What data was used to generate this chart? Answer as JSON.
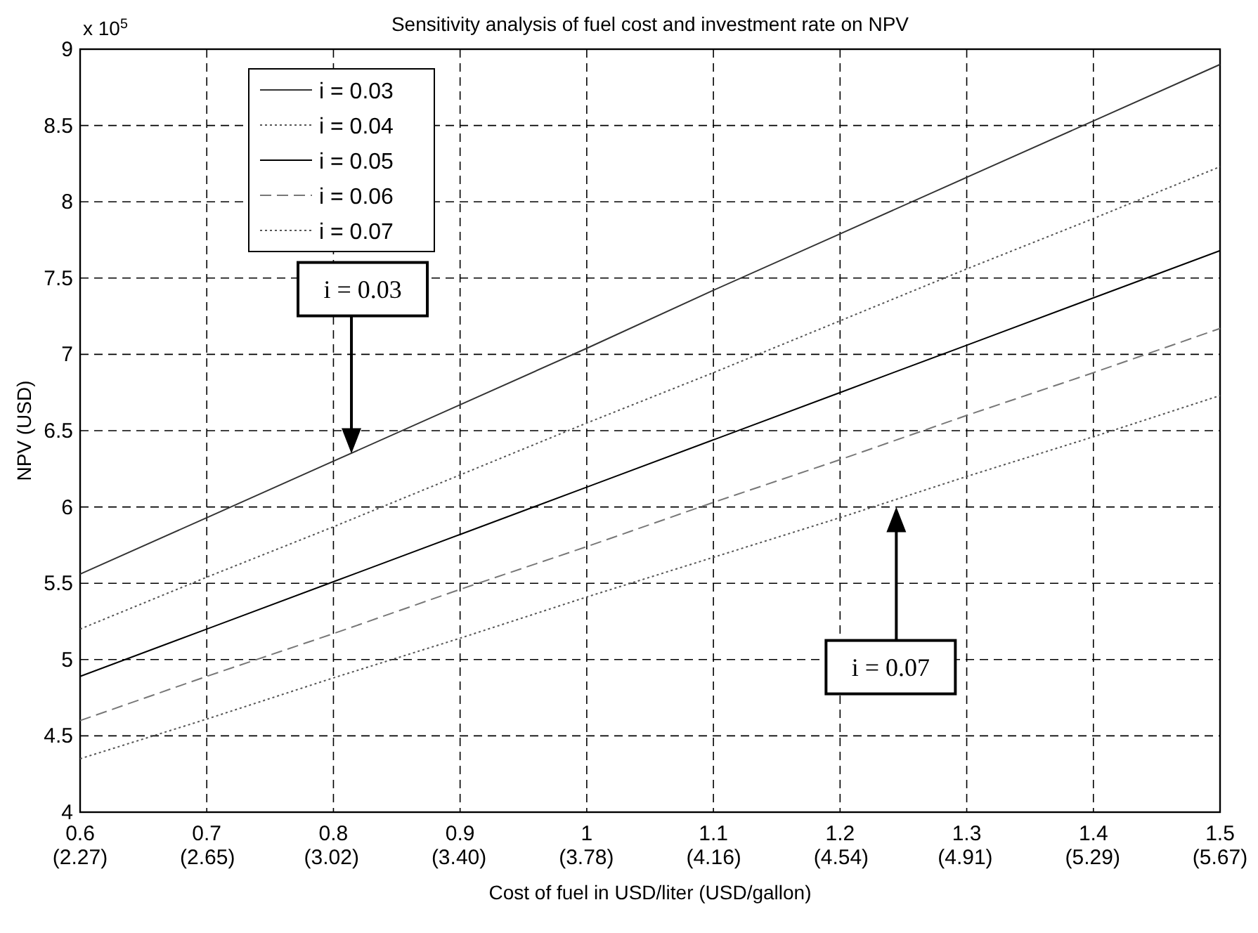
{
  "chart_data": {
    "type": "line",
    "title": "Sensitivity analysis of fuel cost and investment rate on NPV",
    "xlabel": "Cost of fuel in USD/liter (USD/gallon)",
    "ylabel": "NPV (USD)",
    "x": [
      0.6,
      0.7,
      0.8,
      0.9,
      1.0,
      1.1,
      1.2,
      1.3,
      1.4,
      1.5
    ],
    "series": [
      {
        "name": "i = 0.03",
        "color": "#333333",
        "line_style": "solid",
        "values": [
          5.56,
          5.93,
          6.3,
          6.67,
          7.04,
          7.42,
          7.79,
          8.16,
          8.53,
          8.9
        ]
      },
      {
        "name": "i = 0.04",
        "color": "#555555",
        "line_style": "dotted",
        "values": [
          5.2,
          5.54,
          5.87,
          6.21,
          6.55,
          6.88,
          7.22,
          7.56,
          7.89,
          8.23
        ]
      },
      {
        "name": "i = 0.05",
        "color": "#000000",
        "line_style": "solid",
        "values": [
          4.89,
          5.2,
          5.51,
          5.82,
          6.13,
          6.44,
          6.75,
          7.06,
          7.37,
          7.68
        ]
      },
      {
        "name": "i = 0.06",
        "color": "#777777",
        "line_style": "dashed",
        "values": [
          4.6,
          4.89,
          5.17,
          5.46,
          5.74,
          6.03,
          6.31,
          6.6,
          6.88,
          7.17
        ]
      },
      {
        "name": "i = 0.07",
        "color": "#555555",
        "line_style": "dotted",
        "values": [
          4.35,
          4.61,
          4.88,
          5.14,
          5.41,
          5.67,
          5.93,
          6.2,
          6.46,
          6.73
        ]
      }
    ],
    "xlim": [
      0.6,
      1.5
    ],
    "ylim": [
      4,
      9
    ],
    "xticks": [
      0.6,
      0.7,
      0.8,
      0.9,
      1,
      1.1,
      1.2,
      1.3,
      1.4,
      1.5
    ],
    "x2lim": [
      2.27,
      5.67
    ],
    "x2ticks": [
      {
        "value": 2.27,
        "label": "(2.27)"
      },
      {
        "value": 2.65,
        "label": "(2.65)"
      },
      {
        "value": 3.02,
        "label": "(3.02)"
      },
      {
        "value": 3.4,
        "label": "(3.40)"
      },
      {
        "value": 3.78,
        "label": "(3.78)"
      },
      {
        "value": 4.16,
        "label": "(4.16)"
      },
      {
        "value": 4.54,
        "label": "(4.54)"
      },
      {
        "value": 4.91,
        "label": "(4.91)"
      },
      {
        "value": 5.29,
        "label": "(5.29)"
      },
      {
        "value": 5.67,
        "label": "(5.67)"
      }
    ],
    "yticks": [
      4,
      4.5,
      5,
      5.5,
      6,
      6.5,
      7,
      7.5,
      8,
      8.5,
      9
    ],
    "annotations": [
      "x 10$^{5}$",
      "i = 0.03",
      "i = 0.07"
    ],
    "grid": true,
    "legend": "top left"
  }
}
